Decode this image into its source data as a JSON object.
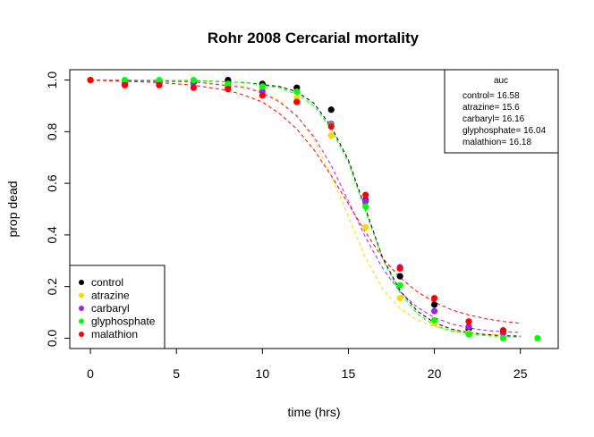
{
  "chart_data": {
    "type": "scatter",
    "title": "Rohr 2008 Cercarial mortality",
    "xlabel": "time (hrs)",
    "ylabel": "prop dead",
    "xlim": [
      -1.2,
      27.2
    ],
    "ylim": [
      -0.04,
      1.04
    ],
    "x_ticks": [
      0,
      5,
      10,
      15,
      20,
      25
    ],
    "x_tick_labels": [
      "0",
      "5",
      "10",
      "15",
      "20",
      "25"
    ],
    "y_ticks": [
      0.0,
      0.2,
      0.4,
      0.6,
      0.8,
      1.0
    ],
    "y_tick_labels": [
      "0.0",
      "0.2",
      "0.4",
      "0.6",
      "0.8",
      "1.0"
    ],
    "grid": false,
    "legend_position": "bottom-left",
    "series": [
      {
        "name": "control",
        "color": "#000000",
        "points": [
          [
            0,
            1.0
          ],
          [
            2,
            0.99
          ],
          [
            4,
            0.99
          ],
          [
            6,
            0.99
          ],
          [
            8,
            1.0
          ],
          [
            10,
            0.985
          ],
          [
            12,
            0.97
          ],
          [
            14,
            0.885
          ],
          [
            16,
            0.535
          ],
          [
            18,
            0.24
          ],
          [
            20,
            0.13
          ],
          [
            22,
            0.035
          ],
          [
            24,
            0.03
          ]
        ],
        "fit": [
          [
            0,
            1.0
          ],
          [
            6,
            0.998
          ],
          [
            9,
            0.99
          ],
          [
            11,
            0.975
          ],
          [
            12,
            0.955
          ],
          [
            13,
            0.91
          ],
          [
            14,
            0.82
          ],
          [
            15,
            0.69
          ],
          [
            16,
            0.5
          ],
          [
            17,
            0.31
          ],
          [
            18,
            0.185
          ],
          [
            19,
            0.105
          ],
          [
            20,
            0.06
          ],
          [
            21,
            0.035
          ],
          [
            22,
            0.022
          ],
          [
            23,
            0.014
          ],
          [
            24,
            0.01
          ],
          [
            25,
            0.008
          ]
        ]
      },
      {
        "name": "atrazine",
        "color": "#FFD700",
        "points": [
          [
            0,
            1.0
          ],
          [
            2,
            0.99
          ],
          [
            4,
            0.99
          ],
          [
            6,
            0.99
          ],
          [
            8,
            0.98
          ],
          [
            10,
            0.965
          ],
          [
            12,
            0.93
          ],
          [
            14,
            0.785
          ],
          [
            16,
            0.43
          ],
          [
            18,
            0.155
          ],
          [
            20,
            0.06
          ],
          [
            22,
            0.02
          ],
          [
            24,
            0.005
          ]
        ],
        "fit": [
          [
            0,
            1.0
          ],
          [
            6,
            0.995
          ],
          [
            9,
            0.975
          ],
          [
            10,
            0.955
          ],
          [
            11,
            0.92
          ],
          [
            12,
            0.865
          ],
          [
            13,
            0.77
          ],
          [
            14,
            0.63
          ],
          [
            15,
            0.47
          ],
          [
            16,
            0.31
          ],
          [
            17,
            0.19
          ],
          [
            18,
            0.115
          ],
          [
            19,
            0.07
          ],
          [
            20,
            0.045
          ],
          [
            21,
            0.03
          ],
          [
            22,
            0.02
          ],
          [
            23,
            0.015
          ],
          [
            24,
            0.012
          ]
        ]
      },
      {
        "name": "carbaryl",
        "color": "#A020F0",
        "points": [
          [
            0,
            1.0
          ],
          [
            2,
            0.99
          ],
          [
            4,
            0.99
          ],
          [
            6,
            0.99
          ],
          [
            8,
            0.97
          ],
          [
            10,
            0.955
          ],
          [
            12,
            0.915
          ],
          [
            14,
            0.83
          ],
          [
            16,
            0.53
          ],
          [
            18,
            0.275
          ],
          [
            20,
            0.105
          ],
          [
            22,
            0.045
          ],
          [
            24,
            0.02
          ]
        ],
        "fit": [
          [
            0,
            1.0
          ],
          [
            6,
            0.993
          ],
          [
            9,
            0.97
          ],
          [
            10,
            0.95
          ],
          [
            11,
            0.915
          ],
          [
            12,
            0.86
          ],
          [
            13,
            0.78
          ],
          [
            14,
            0.67
          ],
          [
            15,
            0.53
          ],
          [
            16,
            0.39
          ],
          [
            17,
            0.27
          ],
          [
            18,
            0.18
          ],
          [
            19,
            0.12
          ],
          [
            20,
            0.08
          ],
          [
            21,
            0.055
          ],
          [
            22,
            0.04
          ],
          [
            23,
            0.03
          ],
          [
            24,
            0.025
          ],
          [
            25,
            0.022
          ]
        ]
      },
      {
        "name": "glyphosphate",
        "color": "#00FF00",
        "points": [
          [
            0,
            1.0
          ],
          [
            2,
            1.0
          ],
          [
            4,
            1.0
          ],
          [
            6,
            1.0
          ],
          [
            8,
            0.985
          ],
          [
            10,
            0.975
          ],
          [
            12,
            0.955
          ],
          [
            14,
            0.825
          ],
          [
            16,
            0.51
          ],
          [
            18,
            0.205
          ],
          [
            20,
            0.07
          ],
          [
            22,
            0.015
          ],
          [
            24,
            0.0
          ],
          [
            26,
            0.0
          ]
        ],
        "fit": [
          [
            0,
            1.0
          ],
          [
            6,
            0.998
          ],
          [
            9,
            0.99
          ],
          [
            11,
            0.97
          ],
          [
            12,
            0.945
          ],
          [
            13,
            0.9
          ],
          [
            14,
            0.81
          ],
          [
            15,
            0.68
          ],
          [
            16,
            0.49
          ],
          [
            17,
            0.305
          ],
          [
            18,
            0.175
          ],
          [
            19,
            0.095
          ],
          [
            20,
            0.05
          ],
          [
            21,
            0.028
          ],
          [
            22,
            0.016
          ],
          [
            23,
            0.01
          ],
          [
            24,
            0.006
          ],
          [
            25,
            0.004
          ]
        ]
      },
      {
        "name": "malathion",
        "color": "#FF0000",
        "points": [
          [
            0,
            1.0
          ],
          [
            2,
            0.98
          ],
          [
            4,
            0.98
          ],
          [
            6,
            0.97
          ],
          [
            8,
            0.965
          ],
          [
            10,
            0.94
          ],
          [
            12,
            0.915
          ],
          [
            14,
            0.82
          ],
          [
            16,
            0.555
          ],
          [
            18,
            0.27
          ],
          [
            20,
            0.155
          ],
          [
            22,
            0.065
          ],
          [
            24,
            0.03
          ]
        ],
        "fit": [
          [
            0,
            1.0
          ],
          [
            4,
            0.99
          ],
          [
            6,
            0.98
          ],
          [
            8,
            0.96
          ],
          [
            9,
            0.94
          ],
          [
            10,
            0.915
          ],
          [
            11,
            0.87
          ],
          [
            12,
            0.81
          ],
          [
            13,
            0.73
          ],
          [
            14,
            0.63
          ],
          [
            15,
            0.52
          ],
          [
            16,
            0.41
          ],
          [
            17,
            0.31
          ],
          [
            18,
            0.235
          ],
          [
            19,
            0.18
          ],
          [
            20,
            0.14
          ],
          [
            21,
            0.11
          ],
          [
            22,
            0.09
          ],
          [
            23,
            0.075
          ],
          [
            24,
            0.065
          ],
          [
            25,
            0.058
          ]
        ]
      }
    ],
    "auc_box": {
      "title": "auc",
      "entries": [
        "control= 16.58",
        "atrazine= 15.6",
        "carbaryl= 16.16",
        "glyphosphate= 16.04",
        "malathion= 16.18"
      ]
    }
  }
}
